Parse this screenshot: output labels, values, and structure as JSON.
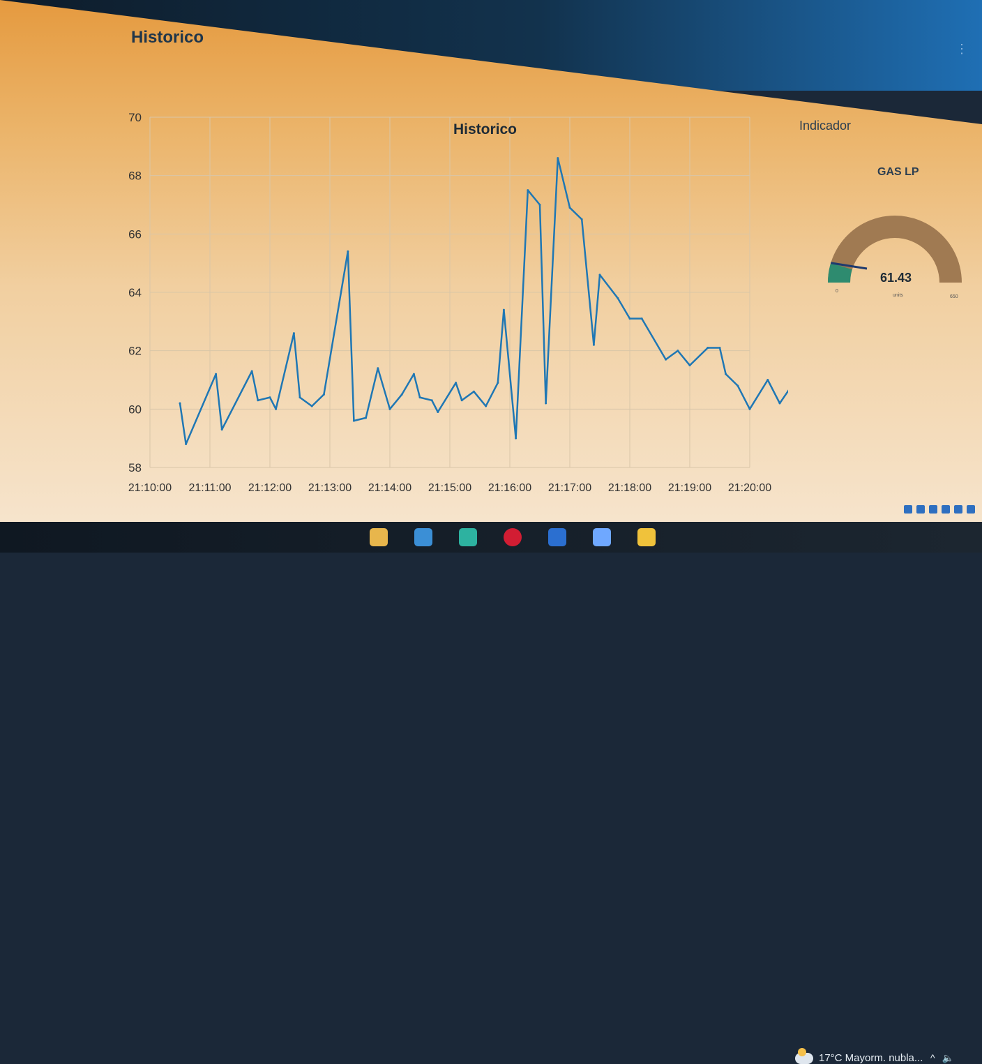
{
  "section": {
    "title": "Historico"
  },
  "chart_data": {
    "type": "line",
    "title": "Historico",
    "xlabel": "",
    "ylabel": "",
    "ylim": [
      58,
      70
    ],
    "y_ticks": [
      "58",
      "60",
      "62",
      "64",
      "66",
      "68",
      "70"
    ],
    "x_ticks": [
      "21:10:00",
      "21:11:00",
      "21:12:00",
      "21:13:00",
      "21:14:00",
      "21:15:00",
      "21:16:00",
      "21:17:00",
      "21:18:00",
      "21:19:00",
      "21:20:00"
    ],
    "x_unit": "minutes after 21:10:00",
    "grid": true,
    "color": "#1f77b4",
    "x": [
      0.5,
      0.6,
      1.1,
      1.2,
      1.7,
      1.8,
      2.0,
      2.1,
      2.4,
      2.5,
      2.7,
      2.9,
      3.3,
      3.4,
      3.6,
      3.8,
      4.0,
      4.2,
      4.4,
      4.5,
      4.7,
      4.8,
      5.1,
      5.2,
      5.4,
      5.6,
      5.8,
      5.9,
      6.1,
      6.3,
      6.5,
      6.6,
      6.8,
      7.0,
      7.2,
      7.4,
      7.5,
      7.8,
      8.0,
      8.2,
      8.6,
      8.8,
      9.0,
      9.3,
      9.5,
      9.6,
      9.8,
      10.0,
      10.3,
      10.5,
      10.8
    ],
    "y": [
      60.2,
      58.8,
      61.2,
      59.3,
      61.3,
      60.3,
      60.4,
      60.0,
      62.6,
      60.4,
      60.1,
      60.5,
      65.4,
      59.6,
      59.7,
      61.4,
      60.0,
      60.5,
      61.2,
      60.4,
      60.3,
      59.9,
      60.9,
      60.3,
      60.6,
      60.1,
      60.9,
      63.4,
      59.0,
      67.5,
      67.0,
      60.2,
      68.6,
      66.9,
      66.5,
      62.2,
      64.6,
      63.8,
      63.1,
      63.1,
      61.7,
      62.0,
      61.5,
      62.1,
      62.1,
      61.2,
      60.8,
      60.0,
      61.0,
      60.2,
      61.1
    ]
  },
  "gauge": {
    "group_title": "Indicador",
    "label": "GAS LP",
    "value": "61.43",
    "value_num": 61.43,
    "min_num": 0,
    "max_num": 650,
    "min": "0",
    "max": "650",
    "units": "units",
    "fill_color": "#2e8b6f",
    "track_color": "#a07a52",
    "needle_color": "#1e3a6e"
  },
  "taskbar": {
    "weather": "17°C  Mayorm. nubla...",
    "apps": [
      "explorer-icon",
      "store-icon",
      "edge-icon",
      "opera-icon",
      "word-icon",
      "3d-icon",
      "app-icon"
    ],
    "tray": [
      "^",
      "🔈"
    ]
  }
}
